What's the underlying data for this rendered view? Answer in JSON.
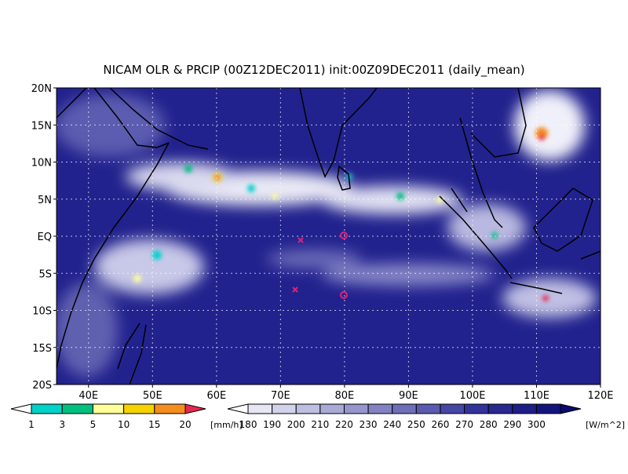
{
  "title": "NICAM OLR & PRCIP (00Z12DEC2011) init:00Z09DEC2011 (daily_mean)",
  "lat_labels": [
    "20N",
    "15N",
    "10N",
    "5N",
    "EQ",
    "5S",
    "10S",
    "15S",
    "20S"
  ],
  "lon_labels": [
    "40E",
    "50E",
    "60E",
    "70E",
    "80E",
    "90E",
    "100E",
    "110E",
    "120E"
  ],
  "precip_legend": {
    "labels": [
      "1",
      "3",
      "5",
      "10",
      "15",
      "20"
    ],
    "unit": "[mm/h]",
    "colors": [
      "#ffffff",
      "#00d2c8",
      "#00c080",
      "#ffff9a",
      "#f5d200",
      "#f58c1e",
      "#e62850"
    ]
  },
  "olr_legend": {
    "labels": [
      "180",
      "190",
      "200",
      "210",
      "220",
      "230",
      "240",
      "250",
      "260",
      "270",
      "280",
      "290",
      "300"
    ],
    "unit": "[W/m^2]",
    "colors": [
      "#ffffff",
      "#e6e6f5",
      "#d2d2eb",
      "#bebee1",
      "#aaaad7",
      "#9696cd",
      "#8282c3",
      "#6e6eb9",
      "#5a5aaf",
      "#4646a5",
      "#32329b",
      "#28288f",
      "#1e1e87",
      "#14147d",
      "#0a0a73"
    ]
  }
}
